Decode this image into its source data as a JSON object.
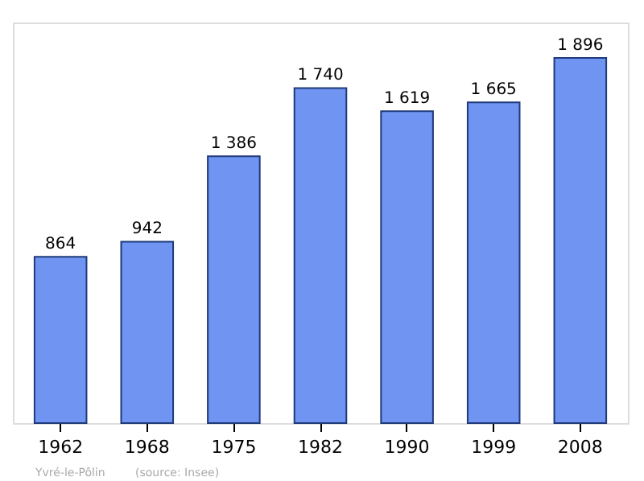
{
  "chart_data": {
    "type": "bar",
    "categories": [
      "1962",
      "1968",
      "1975",
      "1982",
      "1990",
      "1999",
      "2008"
    ],
    "series": [
      {
        "color": "#6f94f2",
        "values": [
          864,
          942,
          1386,
          1740,
          1619,
          1665,
          1896
        ],
        "value_labels": [
          "864",
          "942",
          "1 386",
          "1 740",
          "1 619",
          "1 665",
          "1 896"
        ]
      }
    ],
    "ylim": [
      0,
      2080
    ],
    "tick_labels": "x",
    "grid": false,
    "legend": false,
    "annotations": [
      "Yvré-le-Pôlin",
      "(source: Insee)"
    ]
  }
}
